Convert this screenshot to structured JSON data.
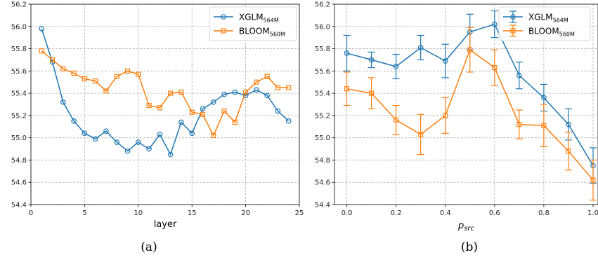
{
  "colors": {
    "xglm": "#1f77b4",
    "bloom": "#ff7f0e",
    "grid": "#b0b0b0"
  },
  "chart_data": [
    {
      "type": "line",
      "caption": "(a)",
      "xlabel": "layer",
      "ylabel": "",
      "xlim": [
        0,
        25
      ],
      "ylim": [
        54.4,
        56.2
      ],
      "xticks": [
        "0",
        "5",
        "10",
        "15",
        "20",
        "25"
      ],
      "yticks": [
        "54.4",
        "54.6",
        "54.8",
        "55.0",
        "55.2",
        "55.4",
        "55.6",
        "55.8",
        "56.0",
        "56.2"
      ],
      "grid": true,
      "legend_position": "top-right",
      "x": [
        1,
        2,
        3,
        4,
        5,
        6,
        7,
        8,
        9,
        10,
        11,
        12,
        13,
        14,
        15,
        16,
        17,
        18,
        19,
        20,
        21,
        22,
        23,
        24
      ],
      "series": [
        {
          "name": "XGLM",
          "name_sub": "564M",
          "marker": "circle",
          "color_key": "xglm",
          "values": [
            55.98,
            55.68,
            55.32,
            55.15,
            55.04,
            54.99,
            55.06,
            54.96,
            54.88,
            54.96,
            54.9,
            55.03,
            54.85,
            55.14,
            55.04,
            55.26,
            55.32,
            55.39,
            55.41,
            55.38,
            55.43,
            55.38,
            55.24,
            55.15
          ]
        },
        {
          "name": "BLOOM",
          "name_sub": "560M",
          "marker": "square",
          "color_key": "bloom",
          "values": [
            55.78,
            55.7,
            55.62,
            55.58,
            55.53,
            55.51,
            55.42,
            55.55,
            55.6,
            55.57,
            55.29,
            55.27,
            55.4,
            55.41,
            55.23,
            55.21,
            55.02,
            55.24,
            55.14,
            55.41,
            55.5,
            55.55,
            55.45,
            55.45
          ]
        }
      ]
    },
    {
      "type": "line",
      "caption": "(b)",
      "xlabel": "p",
      "xlabel_sub": "src",
      "ylabel": "",
      "xlim": [
        -0.05,
        1.02
      ],
      "ylim": [
        54.4,
        56.2
      ],
      "xticks": [
        "0.0",
        "0.2",
        "0.4",
        "0.6",
        "0.8",
        "1.0"
      ],
      "yticks": [
        "54.4",
        "54.6",
        "54.8",
        "55.0",
        "55.2",
        "55.4",
        "55.6",
        "55.8",
        "56.0",
        "56.2"
      ],
      "grid": true,
      "legend_position": "top-right",
      "x": [
        0.0,
        0.1,
        0.2,
        0.3,
        0.4,
        0.5,
        0.6,
        0.7,
        0.8,
        0.9,
        1.0
      ],
      "series": [
        {
          "name": "XGLM",
          "name_sub": "564M",
          "marker": "circle",
          "color_key": "xglm",
          "values": [
            55.76,
            55.7,
            55.64,
            55.81,
            55.69,
            55.95,
            56.02,
            55.56,
            55.36,
            55.12,
            54.75
          ],
          "errors": [
            0.16,
            0.07,
            0.11,
            0.11,
            0.15,
            0.16,
            0.12,
            0.12,
            0.12,
            0.14,
            0.16
          ]
        },
        {
          "name": "BLOOM",
          "name_sub": "560M",
          "marker": "square",
          "color_key": "bloom",
          "values": [
            55.44,
            55.4,
            55.16,
            55.03,
            55.2,
            55.79,
            55.63,
            55.12,
            55.11,
            54.88,
            54.62
          ],
          "errors": [
            0.15,
            0.14,
            0.13,
            0.18,
            0.16,
            0.2,
            0.16,
            0.13,
            0.19,
            0.17,
            0.18
          ]
        }
      ]
    }
  ]
}
